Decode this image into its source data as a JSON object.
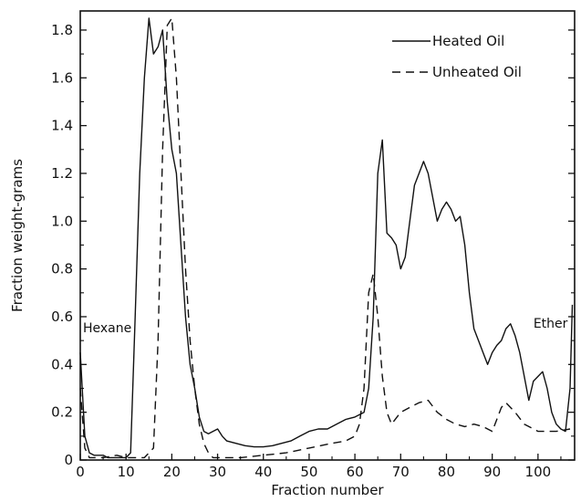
{
  "chart_data": {
    "type": "line",
    "xlabel": "Fraction number",
    "ylabel": "Fraction weight-grams",
    "xlim": [
      0,
      108
    ],
    "ylim": [
      0,
      1.88
    ],
    "x_ticks": [
      0,
      10,
      20,
      30,
      40,
      50,
      60,
      70,
      80,
      90,
      100
    ],
    "x_tick_labels": [
      "0",
      "10",
      "20",
      "30",
      "40",
      "50",
      "60",
      "70",
      "80",
      "90",
      "100"
    ],
    "y_ticks": [
      0,
      0.2,
      0.4,
      0.6,
      0.8,
      1.0,
      1.2,
      1.4,
      1.6,
      1.8
    ],
    "y_tick_labels": [
      "0",
      "0.2",
      "0.4",
      "0.6",
      "0.8",
      "1.0",
      "1.2",
      "1.4",
      "1.6",
      "1.8"
    ],
    "grid": false,
    "legend_position": "top-right",
    "annotations": [
      {
        "text": "Hexane",
        "x": 0.5,
        "y": 0.55
      },
      {
        "text": "Ether",
        "x": 99,
        "y": 0.57
      }
    ],
    "series": [
      {
        "name": "Heated Oil",
        "style": "solid",
        "points": [
          [
            0,
            0.45
          ],
          [
            1,
            0.1
          ],
          [
            2,
            0.03
          ],
          [
            3,
            0.02
          ],
          [
            4,
            0.02
          ],
          [
            5,
            0.02
          ],
          [
            6,
            0.01
          ],
          [
            7,
            0.01
          ],
          [
            8,
            0.01
          ],
          [
            9,
            0.01
          ],
          [
            10,
            0.01
          ],
          [
            11,
            0.03
          ],
          [
            12,
            0.6
          ],
          [
            13,
            1.2
          ],
          [
            14,
            1.6
          ],
          [
            15,
            1.85
          ],
          [
            16,
            1.7
          ],
          [
            17,
            1.73
          ],
          [
            18,
            1.8
          ],
          [
            19,
            1.5
          ],
          [
            20,
            1.3
          ],
          [
            21,
            1.2
          ],
          [
            22,
            0.9
          ],
          [
            23,
            0.6
          ],
          [
            24,
            0.4
          ],
          [
            25,
            0.3
          ],
          [
            26,
            0.18
          ],
          [
            27,
            0.12
          ],
          [
            28,
            0.11
          ],
          [
            29,
            0.12
          ],
          [
            30,
            0.13
          ],
          [
            31,
            0.1
          ],
          [
            32,
            0.08
          ],
          [
            34,
            0.07
          ],
          [
            36,
            0.06
          ],
          [
            38,
            0.055
          ],
          [
            40,
            0.055
          ],
          [
            42,
            0.06
          ],
          [
            44,
            0.07
          ],
          [
            46,
            0.08
          ],
          [
            48,
            0.1
          ],
          [
            50,
            0.12
          ],
          [
            52,
            0.13
          ],
          [
            54,
            0.13
          ],
          [
            56,
            0.15
          ],
          [
            58,
            0.17
          ],
          [
            60,
            0.18
          ],
          [
            62,
            0.2
          ],
          [
            63,
            0.3
          ],
          [
            64,
            0.6
          ],
          [
            65,
            1.2
          ],
          [
            66,
            1.34
          ],
          [
            67,
            0.95
          ],
          [
            68,
            0.93
          ],
          [
            69,
            0.9
          ],
          [
            70,
            0.8
          ],
          [
            71,
            0.85
          ],
          [
            72,
            1.0
          ],
          [
            73,
            1.15
          ],
          [
            74,
            1.2
          ],
          [
            75,
            1.25
          ],
          [
            76,
            1.2
          ],
          [
            77,
            1.1
          ],
          [
            78,
            1.0
          ],
          [
            79,
            1.05
          ],
          [
            80,
            1.08
          ],
          [
            81,
            1.05
          ],
          [
            82,
            1.0
          ],
          [
            83,
            1.02
          ],
          [
            84,
            0.9
          ],
          [
            85,
            0.7
          ],
          [
            86,
            0.55
          ],
          [
            87,
            0.5
          ],
          [
            88,
            0.45
          ],
          [
            89,
            0.4
          ],
          [
            90,
            0.45
          ],
          [
            91,
            0.48
          ],
          [
            92,
            0.5
          ],
          [
            93,
            0.55
          ],
          [
            94,
            0.57
          ],
          [
            95,
            0.52
          ],
          [
            96,
            0.45
          ],
          [
            97,
            0.35
          ],
          [
            98,
            0.25
          ],
          [
            99,
            0.33
          ],
          [
            100,
            0.35
          ],
          [
            101,
            0.37
          ],
          [
            102,
            0.3
          ],
          [
            103,
            0.2
          ],
          [
            104,
            0.15
          ],
          [
            105,
            0.13
          ],
          [
            106,
            0.12
          ],
          [
            107,
            0.3
          ],
          [
            107.5,
            0.65
          ]
        ]
      },
      {
        "name": "Unheated Oil",
        "style": "dashed",
        "points": [
          [
            0,
            0.3
          ],
          [
            1,
            0.05
          ],
          [
            2,
            0.01
          ],
          [
            3,
            0.01
          ],
          [
            5,
            0.01
          ],
          [
            8,
            0.02
          ],
          [
            10,
            0.01
          ],
          [
            14,
            0.01
          ],
          [
            16,
            0.05
          ],
          [
            17,
            0.5
          ],
          [
            18,
            1.3
          ],
          [
            19,
            1.82
          ],
          [
            20,
            1.85
          ],
          [
            21,
            1.6
          ],
          [
            22,
            1.2
          ],
          [
            23,
            0.8
          ],
          [
            24,
            0.5
          ],
          [
            25,
            0.3
          ],
          [
            26,
            0.15
          ],
          [
            27,
            0.07
          ],
          [
            28,
            0.03
          ],
          [
            29,
            0.01
          ],
          [
            30,
            0.01
          ],
          [
            35,
            0.01
          ],
          [
            40,
            0.02
          ],
          [
            45,
            0.03
          ],
          [
            50,
            0.05
          ],
          [
            55,
            0.07
          ],
          [
            58,
            0.08
          ],
          [
            60,
            0.1
          ],
          [
            61,
            0.15
          ],
          [
            62,
            0.3
          ],
          [
            63,
            0.7
          ],
          [
            64,
            0.78
          ],
          [
            65,
            0.6
          ],
          [
            66,
            0.35
          ],
          [
            67,
            0.2
          ],
          [
            68,
            0.15
          ],
          [
            70,
            0.2
          ],
          [
            72,
            0.22
          ],
          [
            74,
            0.24
          ],
          [
            76,
            0.25
          ],
          [
            78,
            0.2
          ],
          [
            80,
            0.17
          ],
          [
            82,
            0.15
          ],
          [
            84,
            0.14
          ],
          [
            86,
            0.15
          ],
          [
            88,
            0.14
          ],
          [
            90,
            0.12
          ],
          [
            92,
            0.22
          ],
          [
            93,
            0.24
          ],
          [
            95,
            0.2
          ],
          [
            97,
            0.15
          ],
          [
            100,
            0.12
          ],
          [
            104,
            0.12
          ],
          [
            107,
            0.13
          ]
        ]
      }
    ]
  }
}
